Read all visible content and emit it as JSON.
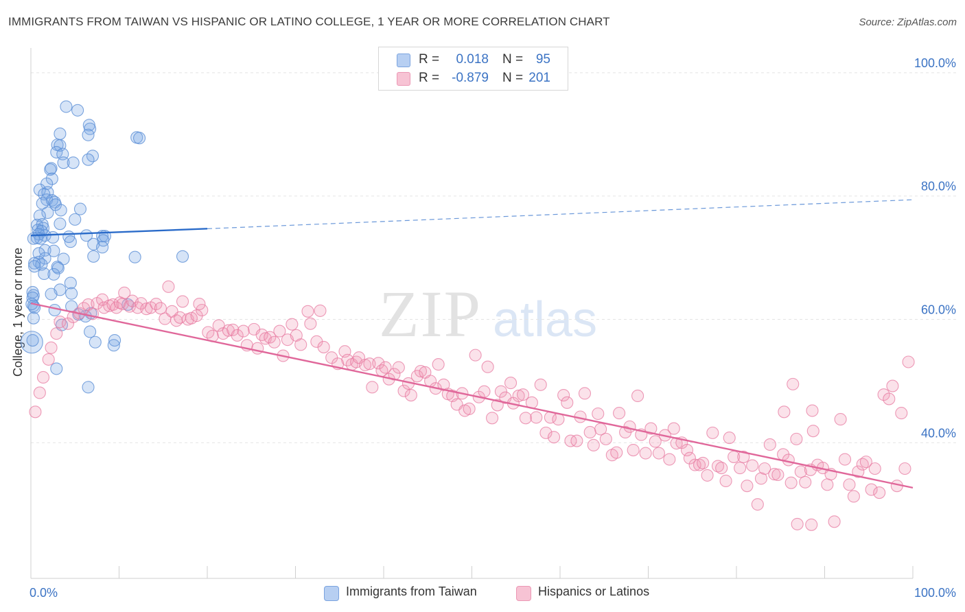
{
  "title": "IMMIGRANTS FROM TAIWAN VS HISPANIC OR LATINO COLLEGE, 1 YEAR OR MORE CORRELATION CHART",
  "source": "Source: ZipAtlas.com",
  "watermark": {
    "zip": "ZIP",
    "atlas": "atlas"
  },
  "colors": {
    "blue": "#5b8fd6",
    "blue_fill": "rgba(120,165,230,0.30)",
    "blue_line": "#2a6bc9",
    "pink": "#e77aa0",
    "pink_fill": "rgba(240,150,180,0.28)",
    "pink_line": "#e0679a",
    "axis_text": "#3b73c4"
  },
  "legend": {
    "rows": [
      {
        "r_label": "R =",
        "r_value": "0.018",
        "n_label": "N =",
        "n_value": "95"
      },
      {
        "r_label": "R =",
        "r_value": "-0.879",
        "n_label": "N =",
        "n_value": "201"
      }
    ]
  },
  "bottom_legend": [
    "Immigrants from Taiwan",
    "Hispanics or Latinos"
  ],
  "chart_data": {
    "type": "scatter",
    "ylabel": "College, 1 year or more",
    "xlim": [
      0,
      100
    ],
    "ylim": [
      18,
      104
    ],
    "x_tick_labels": [
      "0.0%",
      "100.0%"
    ],
    "y_ticks": [
      40,
      60,
      80,
      100
    ],
    "y_tick_labels": [
      "40.0%",
      "60.0%",
      "80.0%",
      "100.0%"
    ],
    "grid": "horizontal dashed",
    "legend_placement": "top-center",
    "series": [
      {
        "name": "Immigrants from Taiwan",
        "trend": {
          "x0": 0,
          "y0": 73.6,
          "x1": 20,
          "y1": 74.7,
          "dashed_to_x": 100,
          "dashed_to_y": 79.4
        },
        "points": [
          [
            4,
            94.5
          ],
          [
            5.3,
            93.9
          ],
          [
            6.6,
            91.5
          ],
          [
            6.7,
            90.9
          ],
          [
            3.3,
            90.1
          ],
          [
            6.5,
            89.9
          ],
          [
            12,
            89.5
          ],
          [
            12.3,
            89.4
          ],
          [
            3,
            88.3
          ],
          [
            3.3,
            88.2
          ],
          [
            2.9,
            87.1
          ],
          [
            3.6,
            86.8
          ],
          [
            7,
            86.5
          ],
          [
            6.5,
            85.9
          ],
          [
            3.7,
            85.4
          ],
          [
            4.8,
            85.4
          ],
          [
            2.3,
            84.5
          ],
          [
            2.2,
            84.3
          ],
          [
            2.4,
            82.8
          ],
          [
            1.8,
            82
          ],
          [
            1,
            81
          ],
          [
            1.9,
            80.6
          ],
          [
            1.5,
            80.3
          ],
          [
            1.8,
            79.4
          ],
          [
            2.4,
            79.3
          ],
          [
            2.7,
            79
          ],
          [
            1.3,
            78.8
          ],
          [
            2.8,
            78.6
          ],
          [
            5.6,
            77.9
          ],
          [
            3.4,
            77.7
          ],
          [
            1.9,
            77.3
          ],
          [
            1,
            76.8
          ],
          [
            5,
            76.2
          ],
          [
            3.3,
            75.5
          ],
          [
            0.7,
            75.3
          ],
          [
            1.3,
            75.4
          ],
          [
            1.4,
            74.8
          ],
          [
            0.8,
            74.5
          ],
          [
            1.2,
            74.3
          ],
          [
            0.9,
            73.8
          ],
          [
            1.6,
            73.6
          ],
          [
            6.3,
            73.6
          ],
          [
            4.3,
            73.4
          ],
          [
            8.1,
            73.5
          ],
          [
            8.4,
            73.5
          ],
          [
            2.5,
            73.3
          ],
          [
            0.7,
            73.2
          ],
          [
            1.1,
            73.1
          ],
          [
            0.3,
            73.1
          ],
          [
            8.2,
            72.8
          ],
          [
            4.5,
            72.6
          ],
          [
            7.1,
            72.2
          ],
          [
            8.1,
            71.7
          ],
          [
            1.6,
            71.2
          ],
          [
            2.6,
            71.1
          ],
          [
            0.9,
            70.7
          ],
          [
            7.1,
            70.2
          ],
          [
            11.8,
            70.1
          ],
          [
            17.2,
            70.2
          ],
          [
            1.6,
            69.9
          ],
          [
            3.7,
            69.8
          ],
          [
            0.9,
            69.3
          ],
          [
            0.4,
            69.1
          ],
          [
            1.2,
            68.9
          ],
          [
            0.4,
            68.6
          ],
          [
            3,
            68.5
          ],
          [
            3.1,
            68.3
          ],
          [
            1.5,
            67.4
          ],
          [
            2.6,
            67.3
          ],
          [
            4.5,
            65.9
          ],
          [
            3.3,
            64.8
          ],
          [
            4.6,
            64.2
          ],
          [
            2.3,
            64.1
          ],
          [
            0.2,
            64.4
          ],
          [
            0.3,
            63.9
          ],
          [
            0.2,
            63.5
          ],
          [
            0.3,
            62.2
          ],
          [
            0.4,
            61.9
          ],
          [
            4.6,
            62.1
          ],
          [
            2.7,
            61.5
          ],
          [
            6.8,
            61
          ],
          [
            5.4,
            60.8
          ],
          [
            6.2,
            60.5
          ],
          [
            3.5,
            59.1
          ],
          [
            6.7,
            58
          ],
          [
            9.5,
            56.6
          ],
          [
            7.3,
            56.3
          ],
          [
            9.4,
            55.8
          ],
          [
            2.9,
            52
          ],
          [
            6.5,
            49
          ],
          [
            0.1,
            56.3
          ],
          [
            0.2,
            56.6
          ],
          [
            0.1,
            62.5
          ],
          [
            0.3,
            60.2
          ],
          [
            11,
            62.4
          ]
        ]
      },
      {
        "name": "Hispanics or Latinos",
        "trend": {
          "x0": 0,
          "y0": 62.6,
          "x1": 100,
          "y1": 32.7
        },
        "points": [
          [
            0.5,
            45
          ],
          [
            1,
            48.1
          ],
          [
            1.4,
            50.6
          ],
          [
            2,
            53.5
          ],
          [
            2.3,
            55.4
          ],
          [
            2.9,
            57.7
          ],
          [
            3.3,
            59.6
          ],
          [
            4.2,
            59.3
          ],
          [
            4.8,
            60.4
          ],
          [
            5.5,
            61
          ],
          [
            6,
            61.8
          ],
          [
            6.5,
            62.4
          ],
          [
            7,
            60.9
          ],
          [
            7.5,
            62.6
          ],
          [
            8.1,
            63.2
          ],
          [
            8.3,
            61.9
          ],
          [
            8.9,
            62.2
          ],
          [
            9.3,
            62.4
          ],
          [
            9.7,
            61.9
          ],
          [
            10.1,
            62.7
          ],
          [
            10.4,
            62.5
          ],
          [
            11.2,
            62.1
          ],
          [
            10.6,
            64.3
          ],
          [
            11.5,
            63
          ],
          [
            12.1,
            61.9
          ],
          [
            12.5,
            62.6
          ],
          [
            13.1,
            61.7
          ],
          [
            13.6,
            61.9
          ],
          [
            14.2,
            62.5
          ],
          [
            14.7,
            61.8
          ],
          [
            15.2,
            60.1
          ],
          [
            15.6,
            65.3
          ],
          [
            16,
            61.3
          ],
          [
            16.5,
            59.8
          ],
          [
            16.9,
            60.3
          ],
          [
            17.2,
            62.9
          ],
          [
            17.8,
            60
          ],
          [
            18.2,
            60.2
          ],
          [
            18.8,
            60.6
          ],
          [
            19.4,
            61.5
          ],
          [
            19.1,
            62.5
          ],
          [
            20.1,
            57.9
          ],
          [
            20.6,
            57.3
          ],
          [
            21.3,
            59
          ],
          [
            21.8,
            57.7
          ],
          [
            22.4,
            58.2
          ],
          [
            22.9,
            58.3
          ],
          [
            23.4,
            57.4
          ],
          [
            24.1,
            58.1
          ],
          [
            24.5,
            55.8
          ],
          [
            25.3,
            58.4
          ],
          [
            25.7,
            55.3
          ],
          [
            26.2,
            57.5
          ],
          [
            26.6,
            56.9
          ],
          [
            27.1,
            57.1
          ],
          [
            27.6,
            56.3
          ],
          [
            28.2,
            58.1
          ],
          [
            28.6,
            54.1
          ],
          [
            29.1,
            56.7
          ],
          [
            29.6,
            59.2
          ],
          [
            30.1,
            57.4
          ],
          [
            30.6,
            55.9
          ],
          [
            31.4,
            61.3
          ],
          [
            31.7,
            59.3
          ],
          [
            32.4,
            56.4
          ],
          [
            32.8,
            61.4
          ],
          [
            33.2,
            55.5
          ],
          [
            34.1,
            53.8
          ],
          [
            34.8,
            52.8
          ],
          [
            35.6,
            54.8
          ],
          [
            35.9,
            53.4
          ],
          [
            36.4,
            52.7
          ],
          [
            36.9,
            53.1
          ],
          [
            37.2,
            53.8
          ],
          [
            37.9,
            52.6
          ],
          [
            38.4,
            52.8
          ],
          [
            38.7,
            49
          ],
          [
            39.4,
            52.9
          ],
          [
            39.8,
            51.7
          ],
          [
            40.2,
            52.2
          ],
          [
            40.6,
            50.3
          ],
          [
            41.2,
            51.1
          ],
          [
            41.7,
            52.2
          ],
          [
            42.3,
            48.4
          ],
          [
            42.8,
            49.6
          ],
          [
            43.1,
            47.7
          ],
          [
            43.8,
            50.8
          ],
          [
            44.2,
            51.6
          ],
          [
            44.7,
            51.4
          ],
          [
            45.3,
            50
          ],
          [
            45.9,
            48.8
          ],
          [
            46.2,
            52.7
          ],
          [
            46.8,
            49.4
          ],
          [
            47.3,
            47.9
          ],
          [
            47.8,
            47.6
          ],
          [
            48.3,
            46.2
          ],
          [
            48.9,
            48
          ],
          [
            49.2,
            45.2
          ],
          [
            49.7,
            45.5
          ],
          [
            50.4,
            54.2
          ],
          [
            50.8,
            47.4
          ],
          [
            51.4,
            48.3
          ],
          [
            51.8,
            52.3
          ],
          [
            52.3,
            44
          ],
          [
            52.9,
            46.1
          ],
          [
            53.3,
            48.3
          ],
          [
            53.8,
            47.3
          ],
          [
            54.4,
            49.7
          ],
          [
            54.7,
            46.4
          ],
          [
            55.3,
            47.6
          ],
          [
            55.8,
            47.8
          ],
          [
            56.1,
            44
          ],
          [
            56.8,
            46.5
          ],
          [
            57.3,
            44.1
          ],
          [
            57.8,
            49.4
          ],
          [
            58.4,
            41.6
          ],
          [
            58.9,
            44.1
          ],
          [
            59.3,
            40.9
          ],
          [
            59.8,
            43.8
          ],
          [
            60.4,
            47.7
          ],
          [
            60.8,
            46.5
          ],
          [
            61.2,
            40.3
          ],
          [
            61.9,
            40.3
          ],
          [
            62.3,
            44.2
          ],
          [
            62.8,
            48
          ],
          [
            63.4,
            41.7
          ],
          [
            63.8,
            39.6
          ],
          [
            64.3,
            44.7
          ],
          [
            64.6,
            42.2
          ],
          [
            65.2,
            40.6
          ],
          [
            65.9,
            38
          ],
          [
            66.4,
            38.4
          ],
          [
            66.7,
            44.8
          ],
          [
            67.4,
            41.7
          ],
          [
            67.9,
            42.6
          ],
          [
            68.3,
            38.8
          ],
          [
            68.8,
            47.6
          ],
          [
            69.2,
            41.3
          ],
          [
            69.7,
            38.3
          ],
          [
            70.3,
            42.3
          ],
          [
            70.8,
            40.2
          ],
          [
            71.2,
            38.3
          ],
          [
            71.9,
            41.2
          ],
          [
            72.4,
            37.3
          ],
          [
            72.9,
            42.3
          ],
          [
            73.2,
            39.9
          ],
          [
            73.8,
            40
          ],
          [
            74.4,
            38.8
          ],
          [
            74.7,
            37.5
          ],
          [
            75.3,
            36.4
          ],
          [
            75.8,
            36.4
          ],
          [
            76.2,
            36.7
          ],
          [
            76.7,
            34.7
          ],
          [
            77.3,
            41.6
          ],
          [
            77.9,
            36.2
          ],
          [
            78.3,
            35.9
          ],
          [
            78.8,
            33.8
          ],
          [
            79.2,
            40.8
          ],
          [
            79.7,
            37.7
          ],
          [
            80.4,
            35.9
          ],
          [
            80.8,
            37.7
          ],
          [
            81.2,
            33
          ],
          [
            81.8,
            36.3
          ],
          [
            82.4,
            30
          ],
          [
            82.8,
            34.2
          ],
          [
            83.2,
            35.8
          ],
          [
            83.8,
            39.7
          ],
          [
            84.3,
            34.9
          ],
          [
            84.7,
            34.8
          ],
          [
            85.3,
            38.1
          ],
          [
            85.9,
            37.2
          ],
          [
            86.2,
            33.5
          ],
          [
            86.8,
            40.6
          ],
          [
            87.3,
            35.3
          ],
          [
            87.8,
            33.6
          ],
          [
            88.4,
            35.6
          ],
          [
            88.7,
            41.9
          ],
          [
            89.2,
            36.4
          ],
          [
            89.8,
            35.9
          ],
          [
            90.3,
            33.2
          ],
          [
            90.7,
            34.9
          ],
          [
            91.1,
            27.2
          ],
          [
            91.8,
            43.8
          ],
          [
            92.3,
            37.3
          ],
          [
            92.8,
            33.2
          ],
          [
            93.3,
            31.3
          ],
          [
            93.8,
            35.3
          ],
          [
            94.3,
            36.5
          ],
          [
            94.7,
            36.9
          ],
          [
            95.3,
            32.4
          ],
          [
            95.7,
            35.8
          ],
          [
            96.2,
            31.9
          ],
          [
            96.7,
            47.8
          ],
          [
            97.3,
            47.1
          ],
          [
            97.7,
            49.2
          ],
          [
            98.2,
            33
          ],
          [
            98.7,
            44.8
          ],
          [
            99.1,
            35.8
          ],
          [
            99.5,
            53.1
          ],
          [
            86.4,
            49.5
          ],
          [
            88.6,
            45.2
          ],
          [
            85.4,
            45
          ],
          [
            86.9,
            26.8
          ],
          [
            88.5,
            26.7
          ]
        ]
      }
    ]
  }
}
